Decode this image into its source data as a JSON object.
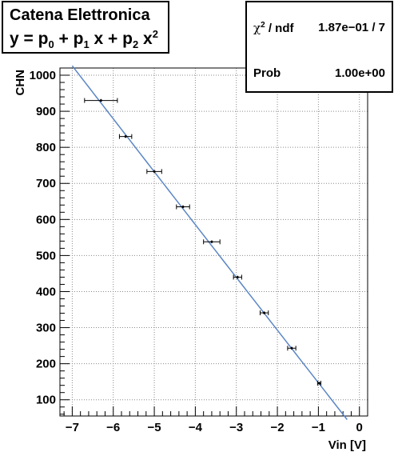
{
  "title": {
    "line1": "Catena Elettronica",
    "formula_y": "y = p",
    "formula_sub0": "0",
    "formula_plus1": " + p",
    "formula_sub1": "1",
    "formula_x1": " x + p",
    "formula_sub2": "2",
    "formula_x2": " x",
    "formula_sup2": "2"
  },
  "stats": {
    "chi2_symbol": "χ",
    "chi2_sup": "2",
    "chi2_label_rest": " / ndf",
    "chi2_value": "1.87e−01 / 7",
    "prob_label": "Prob",
    "prob_value": "1.00e+00"
  },
  "chart_data": {
    "type": "scatter",
    "title": "Catena Elettronica",
    "xlabel": "Vin [V]",
    "ylabel": "CHN",
    "xlim": [
      -7.3,
      0.2
    ],
    "ylim": [
      55,
      1020
    ],
    "grid": true,
    "x_ticks": [
      -7,
      -6,
      -5,
      -4,
      -3,
      -2,
      -1,
      0
    ],
    "x_tick_labels": [
      "−7",
      "−6",
      "−5",
      "−4",
      "−3",
      "−2",
      "−1",
      "0"
    ],
    "y_ticks": [
      100,
      200,
      300,
      400,
      500,
      600,
      700,
      800,
      900,
      1000
    ],
    "y_tick_labels": [
      "100",
      "200",
      "300",
      "400",
      "500",
      "600",
      "700",
      "800",
      "900",
      "1000"
    ],
    "points": [
      {
        "x": -6.3,
        "y": 930,
        "xerr": 0.4,
        "yerr": 4
      },
      {
        "x": -5.7,
        "y": 830,
        "xerr": 0.15,
        "yerr": 4
      },
      {
        "x": -5.0,
        "y": 733,
        "xerr": 0.18,
        "yerr": 4
      },
      {
        "x": -4.3,
        "y": 635,
        "xerr": 0.16,
        "yerr": 4
      },
      {
        "x": -3.6,
        "y": 538,
        "xerr": 0.2,
        "yerr": 4
      },
      {
        "x": -2.97,
        "y": 440,
        "xerr": 0.1,
        "yerr": 4
      },
      {
        "x": -2.32,
        "y": 341,
        "xerr": 0.1,
        "yerr": 4
      },
      {
        "x": -1.65,
        "y": 243,
        "xerr": 0.1,
        "yerr": 4
      },
      {
        "x": -0.98,
        "y": 146,
        "xerr": 0.04,
        "yerr": 4
      }
    ],
    "fit": {
      "name": "pol2",
      "x_range": [
        -7.0,
        -0.3
      ],
      "p0": 1.3,
      "p1": -145.7,
      "p2": 0.1
    },
    "colors": {
      "fit_line": "#5b86c5",
      "points": "#000000",
      "grid": "#8a8a8a"
    }
  }
}
